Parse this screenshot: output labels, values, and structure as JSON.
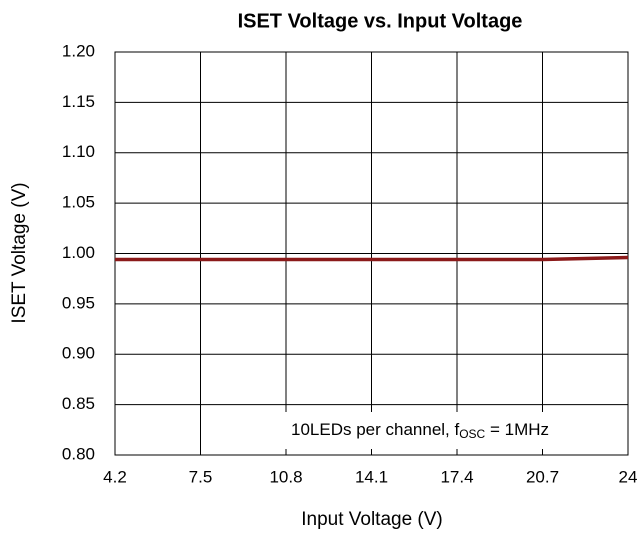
{
  "chart_data": {
    "type": "line",
    "title": "ISET Voltage vs. Input Voltage",
    "xlabel": "Input Voltage (V)",
    "ylabel": "ISET Voltage (V)",
    "annotation": {
      "text": "10LEDs per channel, f",
      "sub": "OSC",
      "tail": " = 1MHz"
    },
    "x": [
      4.2,
      7.5,
      10.8,
      14.1,
      17.4,
      20.7,
      24
    ],
    "series": [
      {
        "name": "ISET Voltage",
        "color": "#8b1a1a",
        "values": [
          0.994,
          0.994,
          0.994,
          0.994,
          0.994,
          0.994,
          0.996
        ]
      }
    ],
    "xlim": [
      4.2,
      24
    ],
    "xticks": [
      4.2,
      7.5,
      10.8,
      14.1,
      17.4,
      20.7,
      24
    ],
    "ylim": [
      0.8,
      1.2
    ],
    "yticks": [
      {
        "value": 0.8,
        "label": "0.80"
      },
      {
        "value": 0.85,
        "label": "0.85"
      },
      {
        "value": 0.9,
        "label": "0.90"
      },
      {
        "value": 0.95,
        "label": "0.95"
      },
      {
        "value": 1.0,
        "label": "1.00"
      },
      {
        "value": 1.05,
        "label": "1.05"
      },
      {
        "value": 1.1,
        "label": "1.10"
      },
      {
        "value": 1.15,
        "label": "1.15"
      },
      {
        "value": 1.2,
        "label": "1.20"
      }
    ],
    "grid": true
  }
}
